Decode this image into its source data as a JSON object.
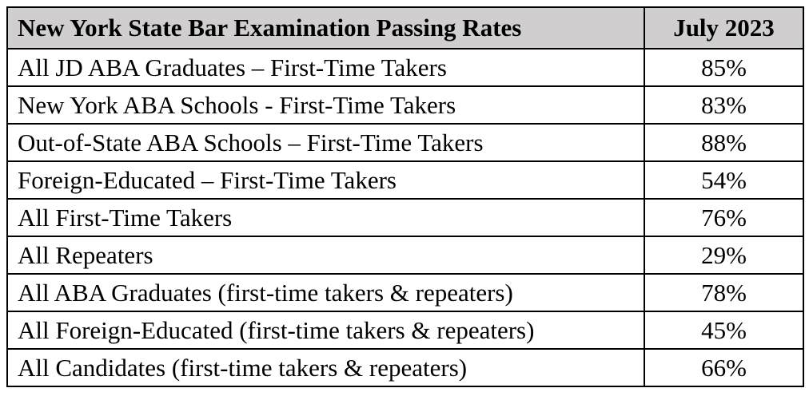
{
  "table": {
    "header": {
      "title": "New York State Bar Examination Passing Rates",
      "period": "July 2023"
    },
    "rows": [
      {
        "label": "All JD ABA Graduates – First-Time Takers",
        "value": "85%"
      },
      {
        "label": "New York ABA Schools - First-Time Takers",
        "value": "83%"
      },
      {
        "label": "Out-of-State ABA Schools – First-Time Takers",
        "value": "88%"
      },
      {
        "label": "Foreign-Educated – First-Time Takers",
        "value": "54%"
      },
      {
        "label": "All First-Time Takers",
        "value": "76%"
      },
      {
        "label": "All Repeaters",
        "value": "29%"
      },
      {
        "label": "All ABA Graduates (first-time takers & repeaters)",
        "value": "78%"
      },
      {
        "label": "All Foreign-Educated (first-time takers & repeaters)",
        "value": "45%"
      },
      {
        "label": "All Candidates (first-time takers & repeaters)",
        "value": "66%"
      }
    ],
    "colors": {
      "header_background": "#d0cece",
      "border": "#000000",
      "text": "#000000"
    }
  }
}
